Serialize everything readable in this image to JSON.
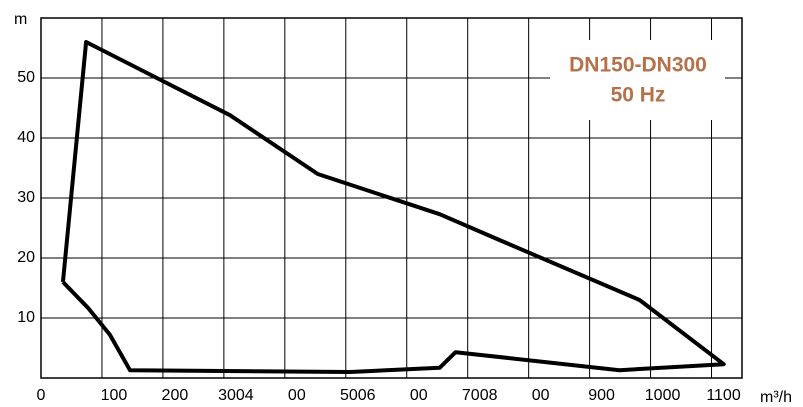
{
  "chart_data": {
    "type": "line",
    "x_unit": "m³/h",
    "y_unit": "m",
    "annotations": [
      "DN150-DN300",
      "50 Hz"
    ],
    "annotation_color": "#b5714a",
    "xlim": [
      0,
      1150
    ],
    "ylim": [
      0,
      60
    ],
    "xticks": [
      0,
      100,
      200,
      {
        "value": 300,
        "label": "3004"
      },
      {
        "value": 400,
        "label": "00"
      },
      {
        "value": 500,
        "label": "5006"
      },
      {
        "value": 600,
        "label": "00"
      },
      {
        "value": 700,
        "label": "7008"
      },
      {
        "value": 800,
        "label": "00"
      },
      900,
      1000,
      1100
    ],
    "yticks": [
      10,
      20,
      30,
      40,
      50
    ],
    "grid": true,
    "series": [
      {
        "color": "#000000",
        "x": [
          36,
          74,
          310,
          454,
          654,
          752,
          982,
          1120,
          949,
          680,
          654,
          507,
          146,
          113,
          77,
          36
        ],
        "values": [
          16,
          56,
          43.8,
          34,
          27.3,
          23,
          13,
          2.3,
          1.3,
          4.3,
          1.7,
          1,
          1.3,
          7.2,
          11.7,
          16
        ]
      }
    ]
  }
}
